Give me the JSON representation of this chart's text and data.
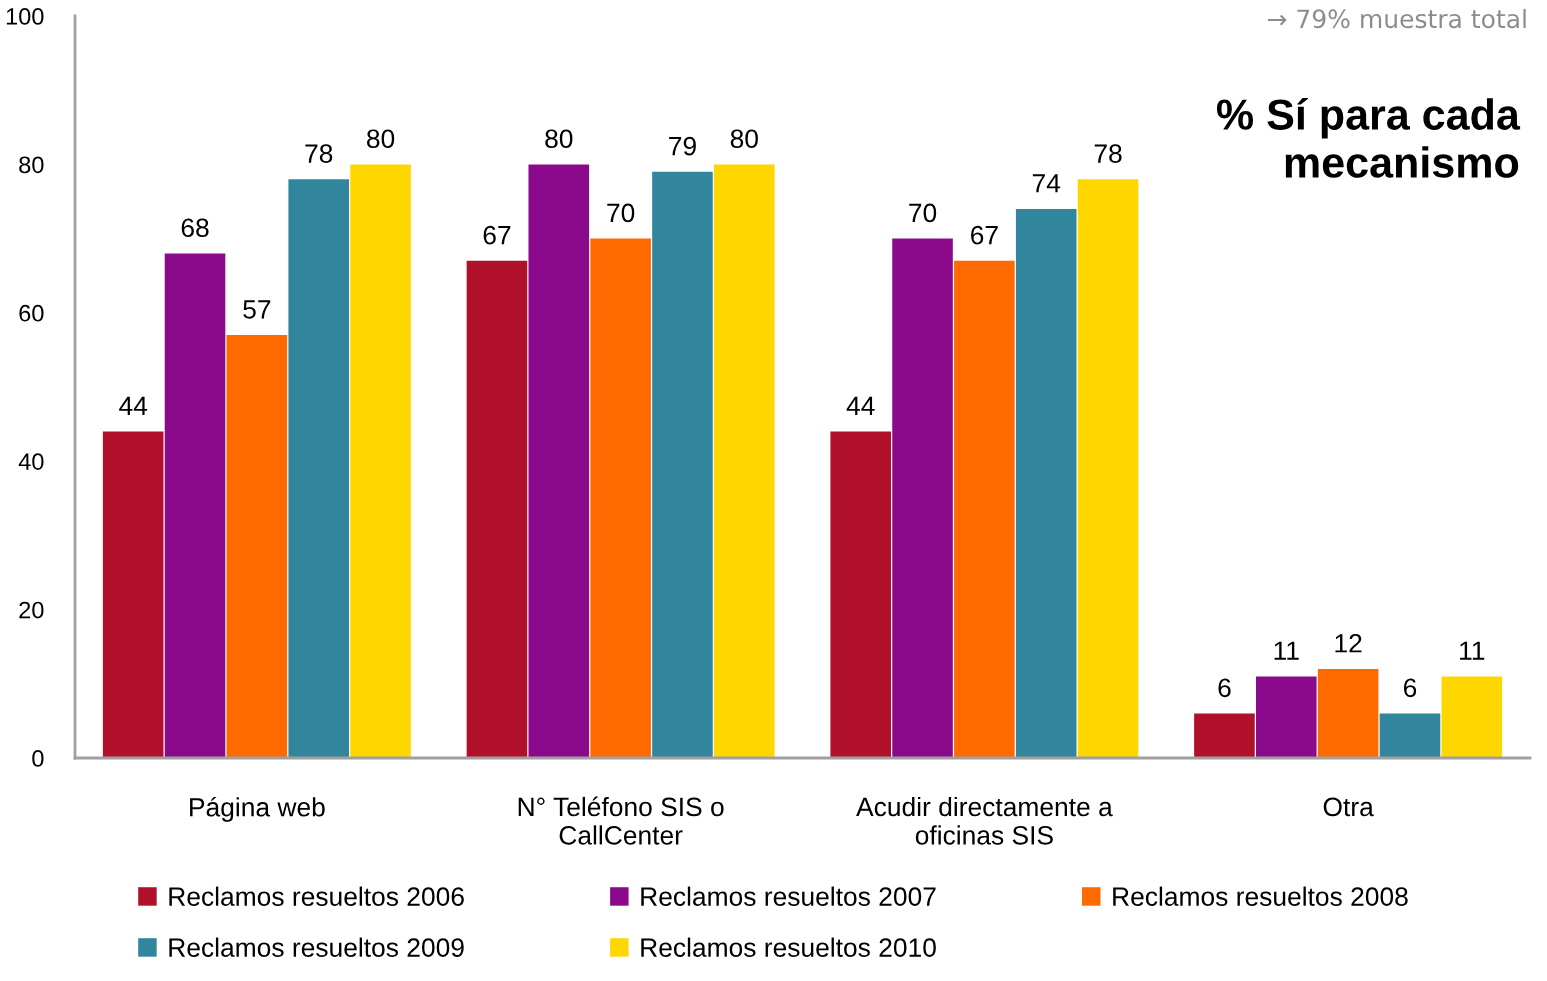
{
  "chart_data": {
    "type": "bar",
    "title": "% Sí para cada\nmecanismo",
    "annotations": [
      "→ 79% muestra total"
    ],
    "categories": [
      "Página web",
      "N° Teléfono SIS o\nCallCenter",
      "Acudir directamente a\noficinas SIS",
      "Otra"
    ],
    "series": [
      {
        "name": "Reclamos resueltos 2006",
        "color": "#b0102a",
        "values": [
          44,
          67,
          44,
          6
        ]
      },
      {
        "name": "Reclamos resueltos 2007",
        "color": "#8b0a8b",
        "values": [
          68,
          80,
          70,
          11
        ]
      },
      {
        "name": "Reclamos resueltos 2008",
        "color": "#ff6a00",
        "values": [
          57,
          70,
          67,
          12
        ]
      },
      {
        "name": "Reclamos resueltos 2009",
        "color": "#31859c",
        "values": [
          78,
          79,
          74,
          6
        ]
      },
      {
        "name": "Reclamos resueltos 2010",
        "color": "#ffd700",
        "values": [
          80,
          80,
          78,
          11
        ]
      }
    ],
    "ylim": [
      0,
      100
    ],
    "yticks": [
      0,
      20,
      40,
      60,
      80,
      100
    ],
    "grid": false,
    "legend": "bottom",
    "data_labels": true
  }
}
